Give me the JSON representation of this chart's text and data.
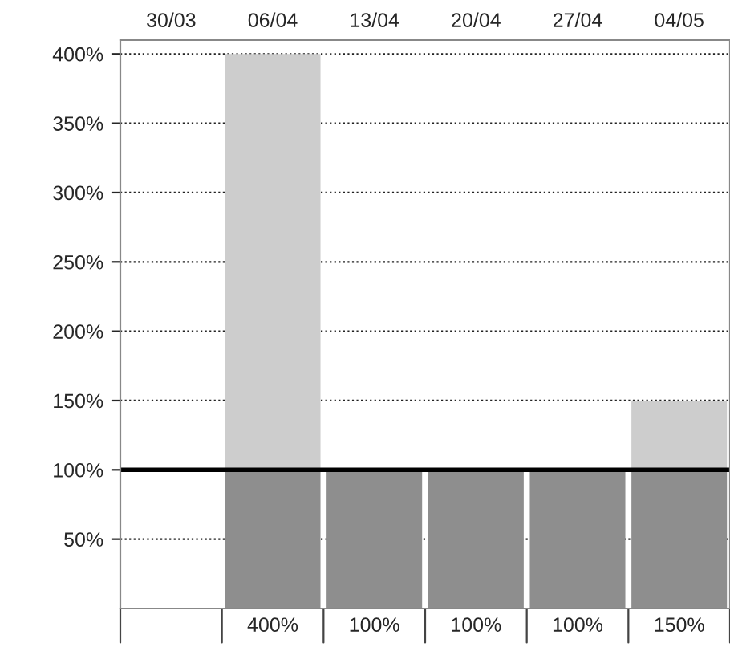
{
  "chart_data": {
    "type": "bar",
    "stacked": true,
    "categories": [
      "30/03",
      "06/04",
      "13/04",
      "20/04",
      "27/04",
      "04/05"
    ],
    "series": [
      {
        "color": "#8e8e8e",
        "values": [
          null,
          100,
          100,
          100,
          100,
          100
        ]
      },
      {
        "color": "#cdcdcd",
        "values": [
          null,
          300,
          0,
          0,
          0,
          50
        ]
      }
    ],
    "totals": [
      null,
      "400%",
      "100%",
      "100%",
      "100%",
      "150%"
    ],
    "ylim": [
      0,
      410
    ],
    "yticks": [
      {
        "value": 50,
        "label": "50%"
      },
      {
        "value": 100,
        "label": "100%"
      },
      {
        "value": 150,
        "label": "150%"
      },
      {
        "value": 200,
        "label": "200%"
      },
      {
        "value": 250,
        "label": "250%"
      },
      {
        "value": 300,
        "label": "300%"
      },
      {
        "value": 350,
        "label": "350%"
      },
      {
        "value": 400,
        "label": "400%"
      }
    ],
    "ref_lines": [
      {
        "axis": "y",
        "value": 100,
        "label": null,
        "color": "#000000",
        "line_style": "solid"
      }
    ],
    "grid": "y",
    "legend": false
  }
}
